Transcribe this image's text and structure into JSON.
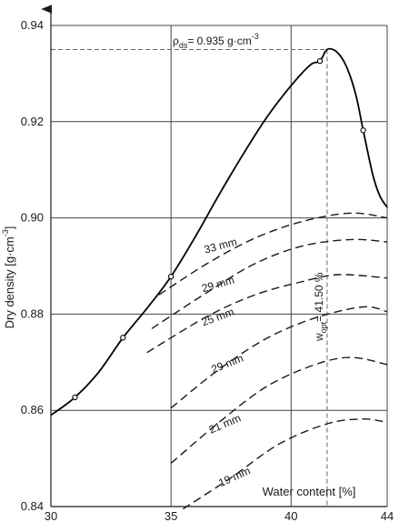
{
  "chart_data": {
    "type": "line",
    "xlabel": "Water content  [%]",
    "ylabel": "Dry density [g·cm",
    "ylabel_sup": "-3",
    "ylabel_close": "]",
    "xlim": [
      30,
      44
    ],
    "ylim": [
      0.84,
      0.94
    ],
    "xticks": [
      30,
      35,
      40,
      44
    ],
    "xtick_labels": [
      "30",
      "35",
      "40",
      "44"
    ],
    "yticks": [
      0.84,
      0.86,
      0.88,
      0.9,
      0.92,
      0.94
    ],
    "ytick_labels": [
      "0.84",
      "0.86",
      "0.88",
      "0.90",
      "0.92",
      "0.94"
    ],
    "grid": true,
    "compaction_curve": {
      "points": [
        {
          "x": 31.0,
          "y": 0.8627
        },
        {
          "x": 33.0,
          "y": 0.8751
        },
        {
          "x": 35.0,
          "y": 0.8878
        },
        {
          "x": 41.2,
          "y": 0.9326
        },
        {
          "x": 43.0,
          "y": 0.9182
        }
      ],
      "curve": [
        [
          30.0,
          0.859
        ],
        [
          31.0,
          0.8627
        ],
        [
          32.0,
          0.868
        ],
        [
          33.0,
          0.8751
        ],
        [
          34.0,
          0.8812
        ],
        [
          35.0,
          0.8878
        ],
        [
          36.0,
          0.896
        ],
        [
          37.0,
          0.9048
        ],
        [
          38.0,
          0.9132
        ],
        [
          39.0,
          0.921
        ],
        [
          40.0,
          0.9275
        ],
        [
          40.8,
          0.9318
        ],
        [
          41.2,
          0.9326
        ],
        [
          41.5,
          0.935
        ],
        [
          41.9,
          0.9345
        ],
        [
          42.3,
          0.9315
        ],
        [
          42.7,
          0.9255
        ],
        [
          43.0,
          0.9182
        ],
        [
          43.4,
          0.909
        ],
        [
          43.7,
          0.9045
        ],
        [
          44.0,
          0.9022
        ]
      ]
    },
    "annotations": {
      "rho_symbol": "ρ",
      "rho_sub": "ds",
      "rho_text": "= 0.935 g·cm",
      "rho_sup": "-3",
      "rho_value": {
        "x": 41.5,
        "y": 0.935
      },
      "w_symbol": "w",
      "w_sub": "opt",
      "w_text": "= 41.50 %",
      "w_value": 41.5
    },
    "series": [
      {
        "name": "33 mm",
        "values": [
          [
            34.5,
            0.884
          ],
          [
            36.5,
            0.8905
          ],
          [
            38.5,
            0.8958
          ],
          [
            40.5,
            0.8993
          ],
          [
            42.5,
            0.901
          ],
          [
            44.0,
            0.9
          ]
        ]
      },
      {
        "name": "29 mm",
        "values": [
          [
            34.2,
            0.877
          ],
          [
            36.5,
            0.8845
          ],
          [
            38.5,
            0.8905
          ],
          [
            40.5,
            0.8942
          ],
          [
            42.5,
            0.8955
          ],
          [
            44.0,
            0.895
          ]
        ]
      },
      {
        "name": "25 mm",
        "values": [
          [
            34.0,
            0.872
          ],
          [
            36.5,
            0.8795
          ],
          [
            38.5,
            0.884
          ],
          [
            40.5,
            0.8868
          ],
          [
            42.0,
            0.8882
          ],
          [
            44.0,
            0.8875
          ]
        ]
      },
      {
        "name": "29 mm",
        "values": [
          [
            35.0,
            0.8605
          ],
          [
            37.0,
            0.8685
          ],
          [
            39.0,
            0.875
          ],
          [
            41.0,
            0.8792
          ],
          [
            43.0,
            0.8815
          ],
          [
            44.0,
            0.8805
          ]
        ]
      },
      {
        "name": "21 mm",
        "values": [
          [
            35.0,
            0.849
          ],
          [
            37.0,
            0.8575
          ],
          [
            39.0,
            0.865
          ],
          [
            41.0,
            0.8695
          ],
          [
            42.5,
            0.871
          ],
          [
            44.0,
            0.8695
          ]
        ]
      },
      {
        "name": "19 mm",
        "values": [
          [
            35.5,
            0.8395
          ],
          [
            37.5,
            0.846
          ],
          [
            39.5,
            0.853
          ],
          [
            41.5,
            0.8572
          ],
          [
            43.0,
            0.8582
          ],
          [
            44.0,
            0.8575
          ]
        ]
      }
    ],
    "series_labels_at": [
      {
        "x": 37.1,
        "y": 0.8935,
        "angle": -15
      },
      {
        "x": 37.0,
        "y": 0.8855,
        "angle": -16
      },
      {
        "x": 37.0,
        "y": 0.8787,
        "angle": -20
      },
      {
        "x": 37.4,
        "y": 0.869,
        "angle": -22
      },
      {
        "x": 37.3,
        "y": 0.8565,
        "angle": -23
      },
      {
        "x": 37.7,
        "y": 0.8455,
        "angle": -24
      }
    ]
  }
}
